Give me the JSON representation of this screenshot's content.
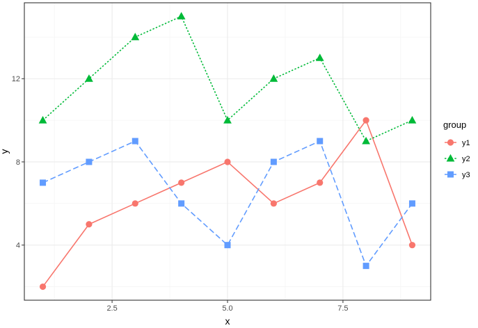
{
  "chart_data": {
    "type": "line",
    "x": [
      1,
      2,
      3,
      4,
      5,
      6,
      7,
      8,
      9
    ],
    "series": [
      {
        "name": "y1",
        "values": [
          2,
          5,
          6,
          7,
          8,
          6,
          7,
          10,
          4
        ],
        "color": "#F8766D",
        "marker": "circle",
        "dash": "solid"
      },
      {
        "name": "y2",
        "values": [
          10,
          12,
          14,
          15,
          10,
          12,
          13,
          9,
          10
        ],
        "color": "#00BA38",
        "marker": "triangle",
        "dash": "dotted"
      },
      {
        "name": "y3",
        "values": [
          7,
          8,
          9,
          6,
          4,
          8,
          9,
          3,
          6
        ],
        "color": "#619CFF",
        "marker": "square",
        "dash": "dashed"
      }
    ],
    "xlabel": "x",
    "ylabel": "y",
    "xlim": [
      0.6,
      9.4
    ],
    "ylim": [
      1.35,
      15.65
    ],
    "xticks": [
      2.5,
      5.0,
      7.5
    ],
    "xtick_labels": [
      "2.5",
      "5.0",
      "7.5"
    ],
    "yticks": [
      4,
      8,
      12
    ],
    "ytick_labels": [
      "4",
      "8",
      "12"
    ],
    "grid": true,
    "legend": {
      "title": "group",
      "position": "right"
    }
  }
}
